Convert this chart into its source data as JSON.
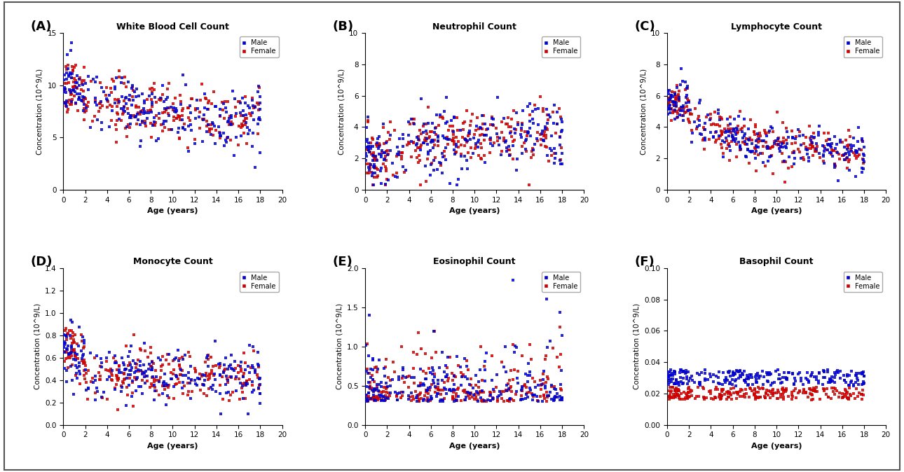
{
  "panels": [
    {
      "label": "A",
      "title": "White Blood Cell Count",
      "ylabel": "Concentration (10^9/L)",
      "xlabel": "Age (years)",
      "ylim": [
        0,
        15
      ],
      "yticks": [
        0,
        5,
        10,
        15
      ],
      "xlim": [
        0,
        20
      ],
      "xticks": [
        0,
        2,
        4,
        6,
        8,
        10,
        12,
        14,
        16,
        18,
        20
      ]
    },
    {
      "label": "B",
      "title": "Neutrophil Count",
      "ylabel": "Concentration (10^9/L)",
      "xlabel": "Age (years)",
      "ylim": [
        0,
        10
      ],
      "yticks": [
        0,
        2,
        4,
        6,
        8,
        10
      ],
      "xlim": [
        0,
        20
      ],
      "xticks": [
        0,
        2,
        4,
        6,
        8,
        10,
        12,
        14,
        16,
        18,
        20
      ]
    },
    {
      "label": "C",
      "title": "Lymphocyte Count",
      "ylabel": "Concentration (10^9/L)",
      "xlabel": "Age (years)",
      "ylim": [
        0,
        10
      ],
      "yticks": [
        0,
        2,
        4,
        6,
        8,
        10
      ],
      "xlim": [
        0,
        20
      ],
      "xticks": [
        0,
        2,
        4,
        6,
        8,
        10,
        12,
        14,
        16,
        18,
        20
      ]
    },
    {
      "label": "D",
      "title": "Monocyte Count",
      "ylabel": "Concentration (10^9/L)",
      "xlabel": "Age (years)",
      "ylim": [
        0,
        1.4
      ],
      "yticks": [
        0.0,
        0.2,
        0.4,
        0.6,
        0.8,
        1.0,
        1.2,
        1.4
      ],
      "xlim": [
        0,
        20
      ],
      "xticks": [
        0,
        2,
        4,
        6,
        8,
        10,
        12,
        14,
        16,
        18,
        20
      ]
    },
    {
      "label": "E",
      "title": "Eosinophil Count",
      "ylabel": "Concentration (10^9/L)",
      "xlabel": "Age (years)",
      "ylim": [
        0,
        2.0
      ],
      "yticks": [
        0.0,
        0.5,
        1.0,
        1.5,
        2.0
      ],
      "xlim": [
        0,
        20
      ],
      "xticks": [
        0,
        2,
        4,
        6,
        8,
        10,
        12,
        14,
        16,
        18,
        20
      ]
    },
    {
      "label": "F",
      "title": "Basophil Count",
      "ylabel": "Concentration (10^9/L)",
      "xlabel": "Age (years)",
      "ylim": [
        0,
        0.1
      ],
      "yticks": [
        0.0,
        0.02,
        0.04,
        0.06,
        0.08,
        0.1
      ],
      "xlim": [
        0,
        20
      ],
      "xticks": [
        0,
        2,
        4,
        6,
        8,
        10,
        12,
        14,
        16,
        18,
        20
      ]
    }
  ],
  "male_color": "#0000CC",
  "female_color": "#CC0000",
  "marker_size": 2.5,
  "alpha": 0.85,
  "background_color": "#ffffff"
}
